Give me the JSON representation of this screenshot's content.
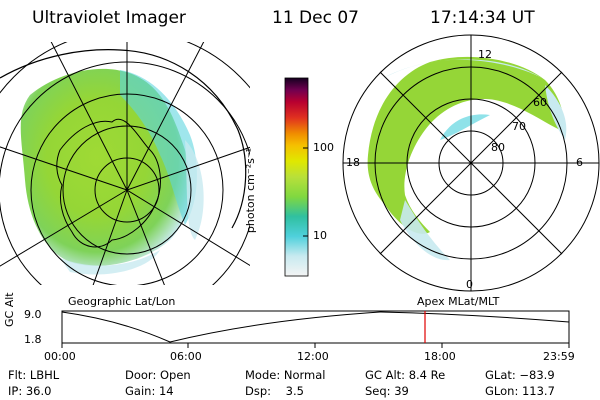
{
  "header": {
    "instrument": "Ultraviolet Imager",
    "date": "11 Dec 07",
    "time": "17:14:34 UT"
  },
  "colorbar": {
    "unit": "photon cm⁻²s⁻¹",
    "ticks": [
      "100",
      "10"
    ],
    "scale": "log",
    "colors": [
      "#f2f2f2",
      "#c8eaf0",
      "#5fd6e0",
      "#2fb8c0",
      "#8fdc30",
      "#b8e23a",
      "#d8e800",
      "#f5d000",
      "#f39000",
      "#e03020",
      "#c00020",
      "#900040",
      "#500060",
      "#1a0030"
    ]
  },
  "panels": {
    "left_label": "Geographic Lat/Lon",
    "right_label": "Apex MLat/MLT",
    "right_lat_labels": [
      "60",
      "70",
      "80"
    ],
    "right_mlt_labels": [
      "12",
      "18",
      "6",
      "0"
    ]
  },
  "timeline": {
    "ylabel": "GC Alt",
    "yticks": [
      "9.0",
      "1.8"
    ],
    "xticks": [
      "00:00",
      "06:00",
      "12:00",
      "18:00",
      "23:59"
    ],
    "marker_time": "17:14:34"
  },
  "info": {
    "filter_label": "Flt:",
    "filter": "LBHL",
    "door_label": "Door:",
    "door": "Open",
    "mode_label": "Mode:",
    "mode": "Normal",
    "gcalt_label": "GC Alt:",
    "gcalt": "8.4 Re",
    "glat_label": "GLat:",
    "glat": "−83.9",
    "ip_label": "IP:",
    "ip": "36.0",
    "gain_label": "Gain:",
    "gain": "14",
    "dsp_label": "Dsp:",
    "dsp": "3.5",
    "seq_label": "Seq:",
    "seq": "39",
    "glon_label": "GLon:",
    "glon": "113.7"
  }
}
